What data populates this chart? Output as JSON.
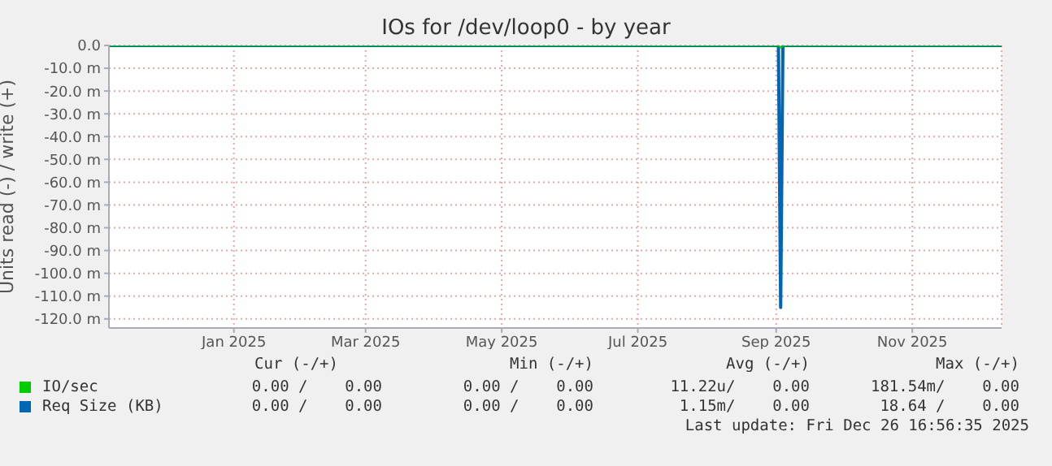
{
  "chart_data": {
    "type": "line",
    "title": "IOs for /dev/loop0 - by year",
    "ylabel": "Units read (-) / write (+)",
    "xlim": [
      "2024-11-21",
      "2025-12-26"
    ],
    "xticks": [
      {
        "value": "2025-01-16",
        "label": "Jan 2025"
      },
      {
        "value": "2025-03-16",
        "label": "Mar 2025"
      },
      {
        "value": "2025-05-16",
        "label": "May 2025"
      },
      {
        "value": "2025-07-16",
        "label": "Jul 2025"
      },
      {
        "value": "2025-09-16",
        "label": "Sep 2025"
      },
      {
        "value": "2025-11-16",
        "label": "Nov 2025"
      }
    ],
    "ylim": [
      -124,
      0
    ],
    "yticks": [
      {
        "value": 0,
        "label": "0.0"
      },
      {
        "value": -10,
        "label": "-10.0 m"
      },
      {
        "value": -20,
        "label": "-20.0 m"
      },
      {
        "value": -30,
        "label": "-30.0 m"
      },
      {
        "value": -40,
        "label": "-40.0 m"
      },
      {
        "value": -50,
        "label": "-50.0 m"
      },
      {
        "value": -60,
        "label": "-60.0 m"
      },
      {
        "value": -70,
        "label": "-70.0 m"
      },
      {
        "value": -80,
        "label": "-80.0 m"
      },
      {
        "value": -90,
        "label": "-90.0 m"
      },
      {
        "value": -100,
        "label": "-100.0 m"
      },
      {
        "value": -110,
        "label": "-110.0 m"
      },
      {
        "value": -120,
        "label": "-120.0 m"
      }
    ],
    "grid": true,
    "legend": "bottom",
    "marker": "none",
    "line_style": "solid",
    "series": [
      {
        "name": "IO/sec",
        "color": "#00cc00",
        "x": [
          "2024-11-21",
          "2025-09-17",
          "2025-09-18",
          "2025-09-19",
          "2025-12-26"
        ],
        "values": [
          0,
          0,
          -1,
          0,
          0
        ]
      },
      {
        "name": "Req Size (KB)",
        "color": "#0066b3",
        "x": [
          "2024-11-21",
          "2025-09-17",
          "2025-09-18",
          "2025-09-19",
          "2025-12-26"
        ],
        "values": [
          0,
          0,
          -115,
          0,
          0
        ]
      }
    ],
    "annotations": [
      "Cur (-/+)",
      "Min (-/+)",
      "Avg (-/+)",
      "Max (-/+)",
      "0.00 /    0.00",
      "0.00 /    0.00",
      "11.22u/    0.00",
      "181.54m/    0.00",
      "0.00 /    0.00",
      "0.00 /    0.00",
      "1.15m/    0.00",
      "18.64 /    0.00",
      "Last update: Fri Dec 26 16:56:35 2025"
    ]
  }
}
